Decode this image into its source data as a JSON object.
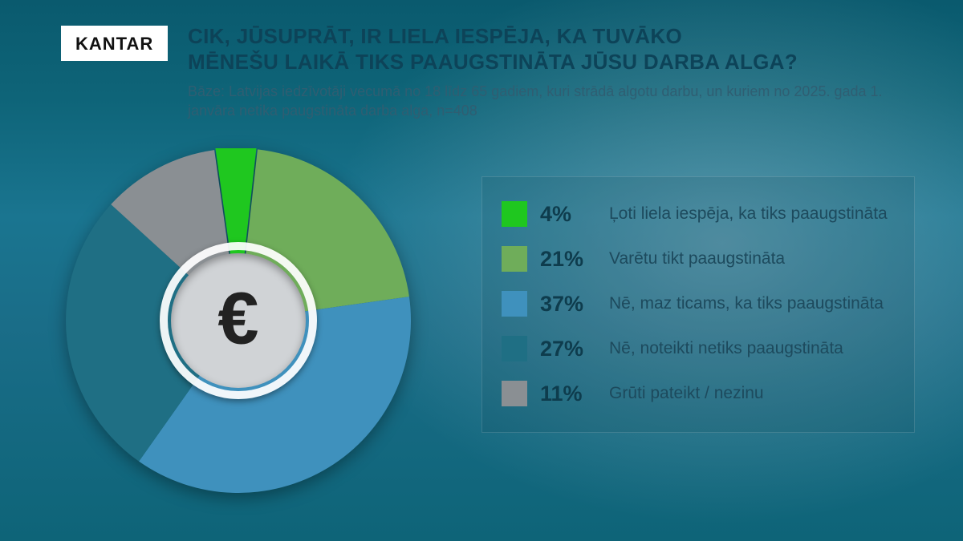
{
  "logo_text": "KANTAR",
  "title_line1": "CIK, JŪSUPRĀT, IR LIELA IESPĒJA, KA TUVĀKO",
  "title_line2": "MĒNEŠU LAIKĀ TIKS PAAUGSTINĀTA JŪSU DARBA ALGA?",
  "subtitle": "Bāze: Latvijas iedzīvotāji vecumā no 18 līdz 65 gadiem, kuri strādā algotu darbu, un kuriem no 2025. gada 1. janvāra netika paugstināta darba alga, n=408",
  "center_symbol": "€",
  "chart": {
    "type": "pie",
    "start_angle_deg": -8,
    "background_color": "transparent",
    "slices": [
      {
        "label": "Ļoti liela iespēja, ka tiks paaugstināta",
        "value": 4,
        "pct_text": "4%",
        "color": "#1fc71f"
      },
      {
        "label": "Varētu tikt paaugstināta",
        "value": 21,
        "pct_text": "21%",
        "color": "#6fad5a"
      },
      {
        "label": "Nē, maz ticams, ka tiks paaugstināta",
        "value": 37,
        "pct_text": "37%",
        "color": "#3f91bd"
      },
      {
        "label": "Nē, noteikti netiks paaugstināta",
        "value": 27,
        "pct_text": "27%",
        "color": "#1f6f84"
      },
      {
        "label": "Grūti pateikt / nezinu",
        "value": 11,
        "pct_text": "11%",
        "color": "#8a8f93"
      }
    ],
    "legend_bg": "rgba(10,50,62,0.10)",
    "pct_fontsize": 27,
    "label_fontsize": 21,
    "title_fontsize": 26
  }
}
